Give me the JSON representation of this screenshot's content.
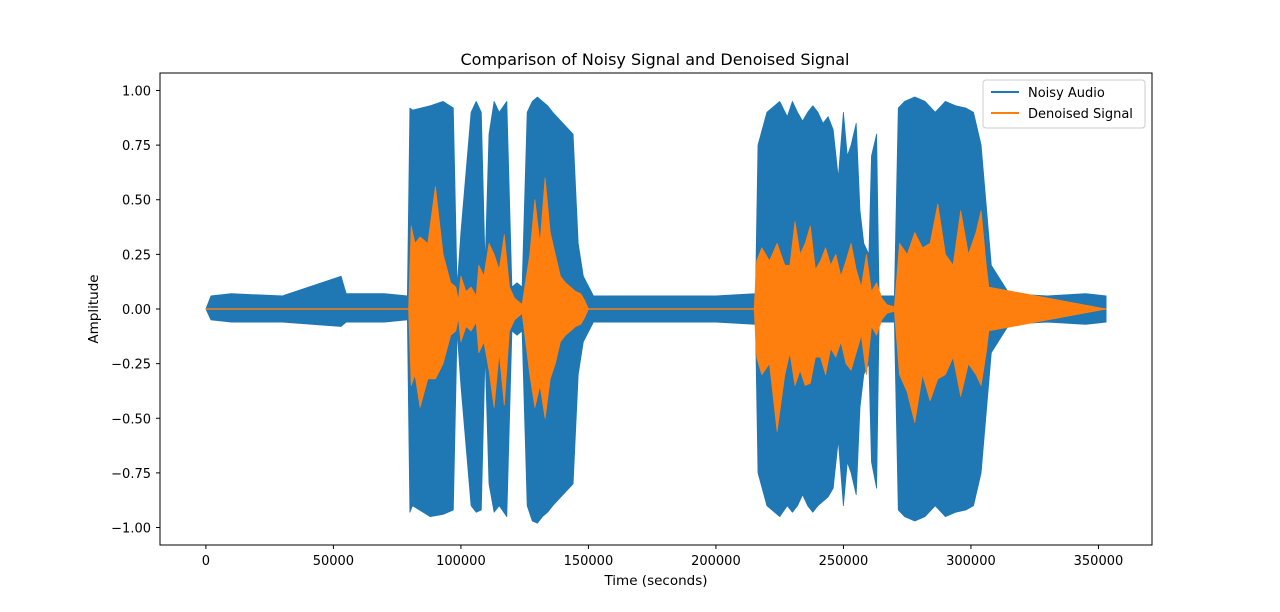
{
  "chart_data": {
    "type": "line",
    "title": "Comparison of Noisy Signal and Denoised Signal",
    "xlabel": "Time (seconds)",
    "ylabel": "Amplitude",
    "xlim": [
      -18000,
      371000
    ],
    "ylim": [
      -1.08,
      1.08
    ],
    "x_ticks": [
      0,
      50000,
      100000,
      150000,
      200000,
      250000,
      300000,
      350000
    ],
    "x_tick_labels": [
      "0",
      "50000",
      "100000",
      "150000",
      "200000",
      "250000",
      "300000",
      "350000"
    ],
    "y_ticks": [
      1.0,
      0.75,
      0.5,
      0.25,
      0.0,
      -0.25,
      -0.5,
      -0.75,
      -1.0
    ],
    "y_tick_labels": [
      "1.00",
      "0.75",
      "0.50",
      "0.25",
      "0.00",
      "−0.25",
      "−0.50",
      "−0.75",
      "−1.00"
    ],
    "grid": false,
    "legend_position": "top-right",
    "series": [
      {
        "name": "Noisy Audio",
        "color": "#1f77b4",
        "x": [
          0,
          2000,
          10000,
          30000,
          53000,
          55000,
          70000,
          79000,
          80000,
          81000,
          88000,
          93000,
          97000,
          98500,
          100000,
          104000,
          106000,
          108000,
          109500,
          111000,
          113000,
          115000,
          118000,
          120000,
          122000,
          124000,
          126000,
          128000,
          130000,
          132000,
          134000,
          136000,
          140000,
          144000,
          146000,
          148000,
          152000,
          160000,
          180000,
          200000,
          215500,
          216500,
          220000,
          225000,
          228000,
          230000,
          232000,
          234000,
          236000,
          238000,
          240000,
          242000,
          244000,
          246000,
          248000,
          250000,
          251500,
          253000,
          255000,
          256500,
          258000,
          260000,
          261000,
          263000,
          264000,
          266000,
          270000,
          271500,
          274000,
          278000,
          282000,
          286000,
          290000,
          294000,
          298000,
          301000,
          304000,
          308000,
          315000,
          330000,
          345000,
          353000
        ],
        "upper": [
          0.0,
          0.06,
          0.07,
          0.06,
          0.15,
          0.07,
          0.07,
          0.06,
          0.92,
          0.91,
          0.93,
          0.95,
          0.92,
          0.1,
          0.35,
          0.9,
          0.95,
          0.9,
          0.2,
          0.8,
          0.95,
          0.9,
          0.95,
          0.1,
          0.12,
          0.1,
          0.9,
          0.95,
          0.97,
          0.95,
          0.93,
          0.9,
          0.85,
          0.8,
          0.3,
          0.15,
          0.06,
          0.06,
          0.06,
          0.06,
          0.07,
          0.75,
          0.9,
          0.95,
          0.88,
          0.95,
          0.9,
          0.86,
          0.9,
          0.93,
          0.9,
          0.85,
          0.88,
          0.82,
          0.6,
          0.9,
          0.7,
          0.75,
          0.85,
          0.45,
          0.3,
          0.25,
          0.7,
          0.8,
          0.06,
          0.06,
          0.06,
          0.92,
          0.95,
          0.97,
          0.95,
          0.9,
          0.95,
          0.93,
          0.92,
          0.9,
          0.75,
          0.2,
          0.07,
          0.06,
          0.07,
          0.06
        ],
        "lower": [
          0.0,
          -0.05,
          -0.06,
          -0.06,
          -0.08,
          -0.06,
          -0.06,
          -0.05,
          -0.93,
          -0.9,
          -0.95,
          -0.94,
          -0.92,
          -0.1,
          -0.35,
          -0.9,
          -0.93,
          -0.92,
          -0.2,
          -0.8,
          -0.93,
          -0.9,
          -0.95,
          -0.1,
          -0.12,
          -0.1,
          -0.9,
          -0.97,
          -0.98,
          -0.95,
          -0.93,
          -0.9,
          -0.85,
          -0.8,
          -0.3,
          -0.15,
          -0.06,
          -0.06,
          -0.06,
          -0.06,
          -0.07,
          -0.75,
          -0.9,
          -0.95,
          -0.9,
          -0.93,
          -0.9,
          -0.85,
          -0.9,
          -0.93,
          -0.9,
          -0.88,
          -0.86,
          -0.82,
          -0.6,
          -0.9,
          -0.7,
          -0.75,
          -0.85,
          -0.45,
          -0.3,
          -0.25,
          -0.7,
          -0.82,
          -0.06,
          -0.06,
          -0.06,
          -0.92,
          -0.95,
          -0.97,
          -0.95,
          -0.9,
          -0.95,
          -0.93,
          -0.92,
          -0.9,
          -0.75,
          -0.2,
          -0.07,
          -0.06,
          -0.07,
          -0.06
        ]
      },
      {
        "name": "Denoised Signal",
        "color": "#ff7f0e",
        "x": [
          0,
          79500,
          80500,
          82000,
          84000,
          87000,
          90000,
          93000,
          96000,
          98000,
          99000,
          100000,
          102000,
          104000,
          106000,
          107000,
          109000,
          111000,
          113000,
          115000,
          117000,
          119000,
          121000,
          124000,
          127000,
          129000,
          131000,
          133000,
          135000,
          137000,
          139000,
          141000,
          143000,
          145000,
          147000,
          148500,
          150000,
          180000,
          215000,
          216000,
          218000,
          221000,
          224000,
          227000,
          229000,
          231000,
          233000,
          235000,
          237000,
          239000,
          241000,
          243000,
          245000,
          247000,
          249000,
          251000,
          253000,
          255000,
          257000,
          259000,
          261000,
          263000,
          265000,
          267000,
          270000,
          272000,
          275000,
          278000,
          281000,
          284000,
          287000,
          290000,
          293000,
          296000,
          299000,
          302000,
          304000,
          306000,
          307000,
          353000
        ],
        "upper": [
          0.0,
          0.0,
          0.38,
          0.3,
          0.33,
          0.3,
          0.56,
          0.25,
          0.12,
          0.1,
          0.04,
          0.15,
          0.08,
          0.1,
          0.06,
          0.2,
          0.15,
          0.3,
          0.25,
          0.18,
          0.34,
          0.1,
          0.05,
          0.02,
          0.25,
          0.5,
          0.3,
          0.6,
          0.35,
          0.25,
          0.15,
          0.12,
          0.1,
          0.08,
          0.07,
          0.04,
          0.0,
          0.0,
          0.0,
          0.22,
          0.28,
          0.22,
          0.3,
          0.2,
          0.2,
          0.4,
          0.25,
          0.3,
          0.38,
          0.18,
          0.22,
          0.28,
          0.2,
          0.25,
          0.15,
          0.22,
          0.3,
          0.18,
          0.1,
          0.25,
          0.08,
          0.12,
          0.05,
          0.02,
          0.01,
          0.3,
          0.25,
          0.35,
          0.28,
          0.3,
          0.48,
          0.25,
          0.2,
          0.45,
          0.25,
          0.35,
          0.45,
          0.2,
          0.1,
          0.0
        ],
        "lower": [
          0.0,
          0.0,
          -0.35,
          -0.3,
          -0.45,
          -0.32,
          -0.32,
          -0.25,
          -0.12,
          -0.1,
          -0.04,
          -0.15,
          -0.08,
          -0.1,
          -0.06,
          -0.2,
          -0.15,
          -0.28,
          -0.45,
          -0.2,
          -0.44,
          -0.1,
          -0.05,
          -0.02,
          -0.3,
          -0.45,
          -0.35,
          -0.5,
          -0.32,
          -0.25,
          -0.15,
          -0.12,
          -0.1,
          -0.08,
          -0.07,
          -0.04,
          0.0,
          0.0,
          0.0,
          -0.22,
          -0.3,
          -0.25,
          -0.56,
          -0.3,
          -0.2,
          -0.35,
          -0.28,
          -0.35,
          -0.34,
          -0.22,
          -0.22,
          -0.3,
          -0.18,
          -0.22,
          -0.15,
          -0.25,
          -0.28,
          -0.2,
          -0.12,
          -0.3,
          -0.08,
          -0.12,
          -0.05,
          -0.02,
          -0.01,
          -0.3,
          -0.38,
          -0.52,
          -0.3,
          -0.42,
          -0.32,
          -0.3,
          -0.22,
          -0.4,
          -0.25,
          -0.3,
          -0.35,
          -0.2,
          -0.1,
          0.0
        ]
      }
    ]
  }
}
